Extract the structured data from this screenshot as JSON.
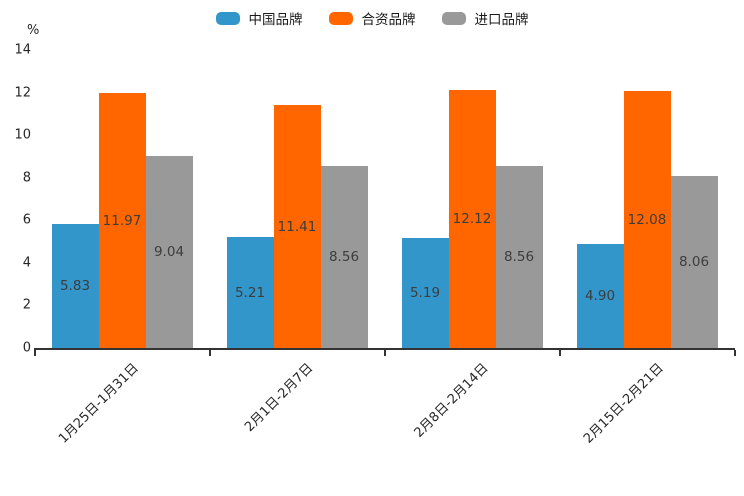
{
  "chart_data": {
    "type": "bar",
    "title": "",
    "unit_label": "%",
    "categories": [
      "1月25日-1月31日",
      "2月1日-2月7日",
      "2月8日-2月14日",
      "2月15日-2月21日"
    ],
    "series": [
      {
        "name": "中国品牌",
        "color": "#3296CB",
        "values": [
          5.83,
          5.21,
          5.19,
          4.9
        ]
      },
      {
        "name": "合资品牌",
        "color": "#FF6600",
        "values": [
          11.97,
          11.41,
          12.12,
          12.08
        ]
      },
      {
        "name": "进口品牌",
        "color": "#999999",
        "values": [
          9.04,
          8.56,
          8.56,
          8.06
        ]
      }
    ],
    "ylim": [
      0,
      14
    ],
    "yticks": [
      0,
      2,
      4,
      6,
      8,
      10,
      12,
      14
    ],
    "grid": false,
    "legend_position": "top-center",
    "value_labels": "centered-inside-bars",
    "value_label_decimals": 2,
    "x_label_rotation_deg": 45
  }
}
